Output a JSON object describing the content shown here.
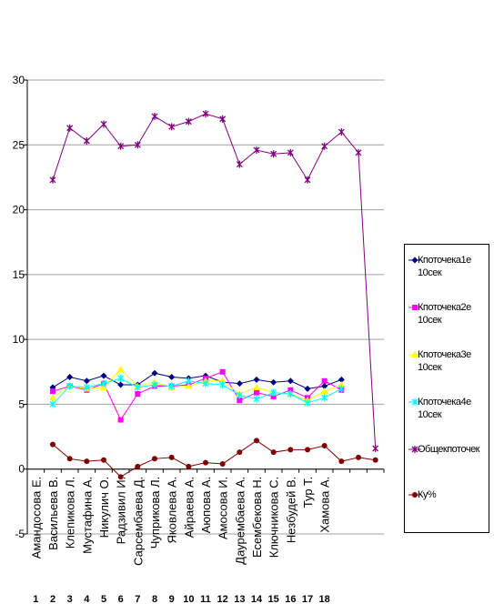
{
  "chart_data": {
    "type": "line",
    "categories": [
      "Амандосова Е.",
      "Васильева В.",
      "Клепикова Л.",
      "Мустафина А.",
      "Никулич О.",
      "Радзивил И.",
      "Сарсембаева Д.",
      "Чуприкова Л.",
      "Яковлева А.",
      "Айраева А.",
      "Аюпова А.",
      "Амосова И.",
      "Даурембаева А.",
      "Есембекова Н.",
      "Ключникова С.",
      "Незбудей В.",
      "Тур Т.",
      "Хамова А.",
      null,
      null,
      null
    ],
    "index_labels": [
      "1",
      "2",
      "3",
      "4",
      "5",
      "6",
      "7",
      "8",
      "9",
      "10",
      "11",
      "12",
      "13",
      "14",
      "15",
      "16",
      "17",
      "18"
    ],
    "series": [
      {
        "name": "Кпоточека1е 10сек",
        "color": "#000080",
        "marker": "diamond",
        "values": [
          null,
          6.3,
          7.1,
          6.8,
          7.2,
          6.5,
          6.5,
          7.4,
          7.1,
          7.0,
          7.2,
          6.7,
          6.6,
          6.9,
          6.7,
          6.8,
          6.2,
          6.4,
          6.9,
          null,
          null
        ]
      },
      {
        "name": "Кпоточека2е 10сек",
        "color": "#ff00ff",
        "marker": "square",
        "values": [
          null,
          6.0,
          6.4,
          6.1,
          6.6,
          3.8,
          5.8,
          6.4,
          6.4,
          6.5,
          7.0,
          7.5,
          5.3,
          5.9,
          5.6,
          6.1,
          5.5,
          6.8,
          6.1,
          null,
          null
        ]
      },
      {
        "name": "Кпоточека3е 10сек",
        "color": "#ffff00",
        "marker": "triangle",
        "values": [
          null,
          5.5,
          6.4,
          6.2,
          6.3,
          7.7,
          6.4,
          6.7,
          6.3,
          6.4,
          6.8,
          6.8,
          5.8,
          6.3,
          5.9,
          5.8,
          5.3,
          6.0,
          6.5,
          null,
          null
        ]
      },
      {
        "name": "Кпоточека4е 10сек",
        "color": "#00ffff",
        "marker": "cross",
        "values": [
          null,
          5.0,
          6.4,
          6.3,
          6.6,
          7.0,
          6.3,
          6.5,
          6.4,
          6.8,
          6.6,
          6.5,
          5.7,
          5.4,
          5.9,
          5.8,
          5.1,
          5.5,
          6.2,
          null,
          null
        ]
      },
      {
        "name": "Общекпоточек",
        "color": "#800080",
        "marker": "star",
        "values": [
          null,
          22.3,
          26.3,
          25.3,
          26.6,
          24.9,
          25.0,
          27.2,
          26.4,
          26.8,
          27.4,
          27.0,
          23.5,
          24.6,
          24.3,
          24.4,
          22.3,
          24.9,
          26.0,
          24.4,
          1.6
        ]
      },
      {
        "name": "Ку%",
        "color": "#800000",
        "marker": "circle",
        "values": [
          null,
          1.9,
          0.8,
          0.6,
          0.7,
          -0.6,
          0.2,
          0.8,
          0.9,
          0.2,
          0.5,
          0.4,
          1.3,
          2.2,
          1.3,
          1.5,
          1.5,
          1.8,
          0.6,
          0.9,
          0.7
        ]
      }
    ],
    "ylim": [
      -5,
      30
    ],
    "yticks": [
      -5,
      0,
      5,
      10,
      15,
      20,
      25,
      30
    ],
    "grid": true,
    "legend": "right"
  }
}
